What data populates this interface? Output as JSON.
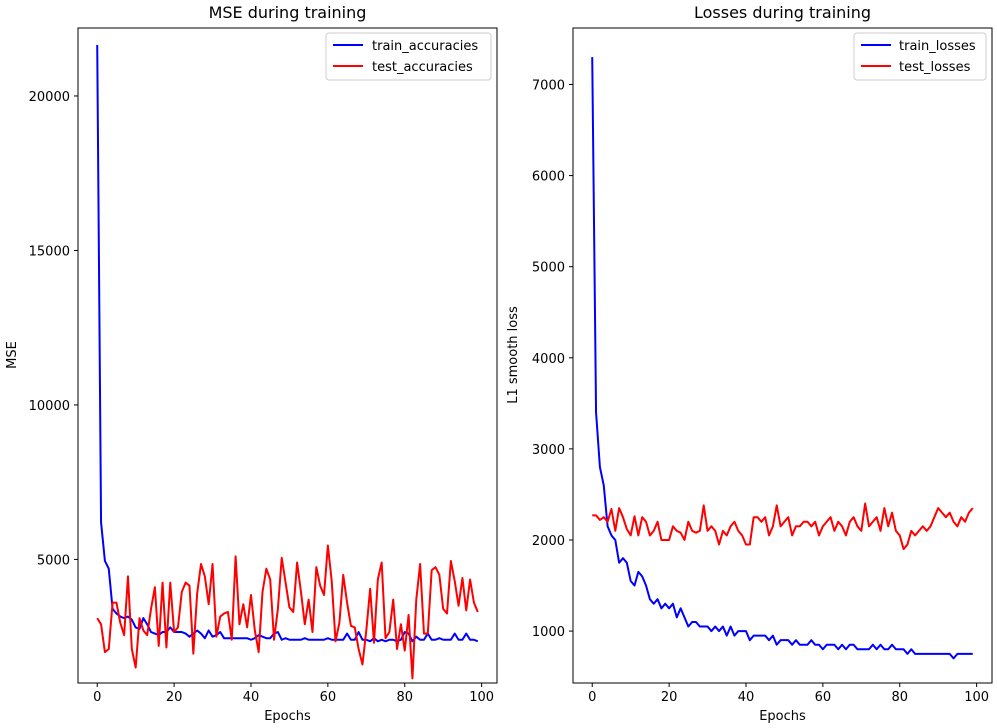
{
  "chart_data": [
    {
      "type": "line",
      "title": "MSE during training",
      "xlabel": "Epochs",
      "ylabel": "MSE",
      "xlim": [
        -5,
        104
      ],
      "ylim": [
        1000,
        22200
      ],
      "xticks": [
        0,
        20,
        40,
        60,
        80,
        100
      ],
      "yticks": [
        5000,
        10000,
        15000,
        20000
      ],
      "legend_position": "top-right",
      "grid": false,
      "series": [
        {
          "name": "train_accuracies",
          "color": "#0000ff",
          "values": [
            21650,
            6200,
            4950,
            4700,
            3400,
            3250,
            3150,
            3100,
            3150,
            3050,
            2800,
            2750,
            3100,
            2900,
            2650,
            2600,
            2550,
            2650,
            2650,
            2800,
            2650,
            2650,
            2650,
            2600,
            2500,
            2600,
            2700,
            2600,
            2450,
            2700,
            2500,
            2550,
            2650,
            2450,
            2450,
            2450,
            2450,
            2450,
            2450,
            2450,
            2400,
            2450,
            2550,
            2500,
            2450,
            2450,
            2600,
            2650,
            2400,
            2450,
            2400,
            2400,
            2400,
            2400,
            2450,
            2400,
            2400,
            2400,
            2400,
            2400,
            2450,
            2400,
            2400,
            2400,
            2400,
            2600,
            2400,
            2400,
            2650,
            2400,
            2400,
            2350,
            2450,
            2350,
            2400,
            2350,
            2400,
            2400,
            2350,
            2400,
            2650,
            2600,
            2350,
            2500,
            2400,
            2400,
            2600,
            2400,
            2400,
            2450,
            2400,
            2400,
            2400,
            2600,
            2400,
            2400,
            2600,
            2400,
            2400,
            2350
          ]
        },
        {
          "name": "test_accuracies",
          "color": "#ff0000",
          "values": [
            3100,
            2900,
            2000,
            2100,
            3600,
            3600,
            2950,
            2550,
            4450,
            2100,
            1500,
            3100,
            2700,
            2550,
            3400,
            4100,
            2200,
            4250,
            2150,
            4250,
            2650,
            2800,
            3950,
            4250,
            4150,
            1950,
            3900,
            4850,
            4450,
            3550,
            4850,
            2500,
            3150,
            3250,
            3300,
            2400,
            5100,
            2900,
            3550,
            2800,
            3850,
            2700,
            2000,
            3950,
            4700,
            4350,
            2400,
            3400,
            5050,
            4250,
            3450,
            3300,
            4900,
            3950,
            2900,
            3700,
            2650,
            4750,
            4150,
            3850,
            5450,
            4300,
            2350,
            2950,
            4500,
            3600,
            2850,
            2800,
            2100,
            1600,
            2700,
            4050,
            2300,
            4350,
            4900,
            2450,
            2650,
            3700,
            2100,
            2900,
            2050,
            3200,
            1150,
            3700,
            4850,
            2600,
            2600,
            4650,
            4750,
            4500,
            3400,
            3250,
            4950,
            4300,
            3500,
            4400,
            3350,
            4350,
            3600,
            3300
          ]
        }
      ]
    },
    {
      "type": "line",
      "title": "Losses during training",
      "xlabel": "Epochs",
      "ylabel": "L1 smooth loss",
      "xlim": [
        -5,
        104
      ],
      "ylim": [
        430,
        7620
      ],
      "xticks": [
        0,
        20,
        40,
        60,
        80,
        100
      ],
      "yticks": [
        1000,
        2000,
        3000,
        4000,
        5000,
        6000,
        7000
      ],
      "legend_position": "top-right",
      "grid": false,
      "series": [
        {
          "name": "train_losses",
          "color": "#0000ff",
          "values": [
            7300,
            3400,
            2800,
            2600,
            2150,
            2050,
            2000,
            1750,
            1800,
            1750,
            1550,
            1500,
            1650,
            1600,
            1500,
            1350,
            1300,
            1350,
            1250,
            1300,
            1250,
            1300,
            1150,
            1250,
            1150,
            1050,
            1100,
            1100,
            1050,
            1050,
            1050,
            1000,
            1050,
            1000,
            1050,
            950,
            1050,
            950,
            1000,
            1000,
            1000,
            900,
            950,
            950,
            950,
            950,
            900,
            950,
            850,
            900,
            900,
            900,
            850,
            900,
            850,
            850,
            850,
            900,
            850,
            850,
            800,
            850,
            850,
            850,
            800,
            850,
            800,
            850,
            850,
            800,
            800,
            800,
            800,
            850,
            800,
            850,
            800,
            800,
            850,
            800,
            800,
            800,
            750,
            800,
            750,
            750,
            750,
            750,
            750,
            750,
            750,
            750,
            750,
            750,
            700,
            750,
            750,
            750,
            750,
            750
          ]
        },
        {
          "name": "test_losses",
          "color": "#ff0000",
          "values": [
            2270,
            2270,
            2220,
            2250,
            2200,
            2340,
            2100,
            2350,
            2250,
            2120,
            2050,
            2260,
            2050,
            2250,
            2200,
            2050,
            2100,
            2200,
            2000,
            2000,
            2000,
            2150,
            2100,
            2080,
            2000,
            2200,
            2100,
            2080,
            2100,
            2380,
            2100,
            2150,
            2100,
            1950,
            2100,
            2050,
            2150,
            2200,
            2100,
            2050,
            1950,
            1950,
            2250,
            2250,
            2200,
            2250,
            2050,
            2150,
            2380,
            2150,
            2200,
            2250,
            2050,
            2150,
            2150,
            2200,
            2200,
            2150,
            2200,
            2050,
            2150,
            2200,
            2250,
            2100,
            2200,
            2150,
            2050,
            2200,
            2250,
            2150,
            2100,
            2400,
            2150,
            2200,
            2250,
            2100,
            2350,
            2150,
            2300,
            2100,
            2050,
            1900,
            1950,
            2100,
            2050,
            2100,
            2150,
            2100,
            2150,
            2250,
            2350,
            2300,
            2250,
            2300,
            2200,
            2150,
            2250,
            2200,
            2300,
            2350
          ]
        }
      ]
    }
  ]
}
